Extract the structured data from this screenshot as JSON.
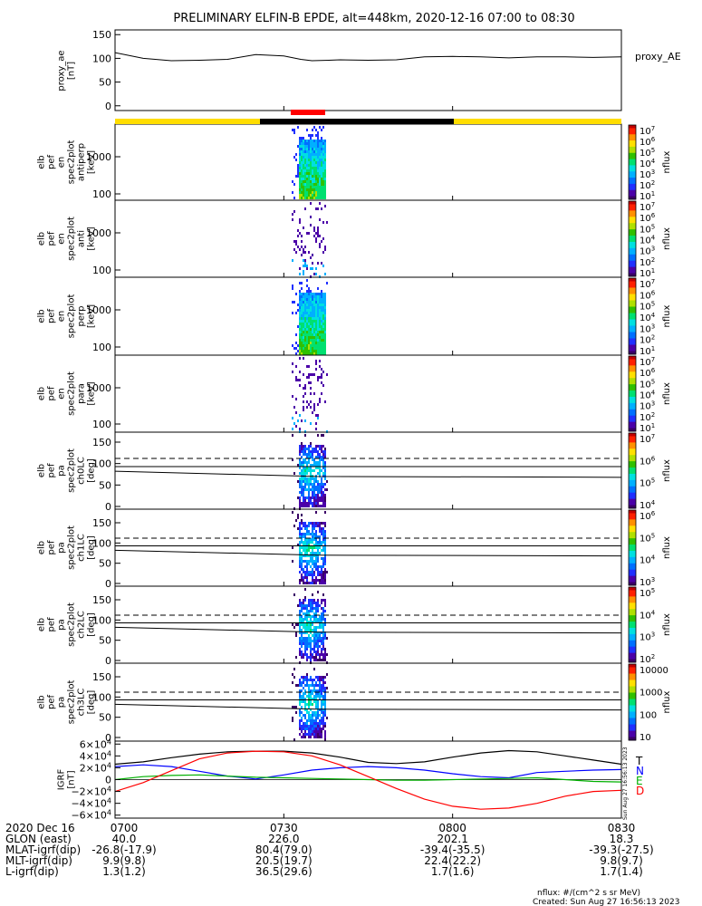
{
  "title": "PRELIMINARY ELFIN-B EPDE, alt=448km, 2020-12-16 07:00 to 08:30",
  "colors": {
    "sunlit_bar": "#ffdd00",
    "eclipse_bar": "#000000",
    "science_zone_bar": "#ff0000",
    "bx": "#000000",
    "by": "#0000ff",
    "bz": "#00b000",
    "bd": "#ff0000"
  },
  "chart_data": [
    {
      "id": "proxy_ae",
      "type": "line",
      "ylabel_lines": [
        "proxy_ae",
        "[nT]"
      ],
      "legend": "proxy_AE",
      "yticks": [
        "150",
        "100",
        "50",
        "0"
      ],
      "ylim": [
        -10,
        160
      ],
      "x_minutes": [
        0,
        5,
        10,
        15,
        20,
        25,
        30,
        33,
        35,
        38,
        40,
        45,
        50,
        55,
        60,
        65,
        70,
        75,
        80,
        85,
        90
      ],
      "values": [
        112,
        100,
        95,
        96,
        98,
        108,
        105,
        98,
        95,
        96,
        97,
        96,
        97,
        103,
        104,
        103,
        101,
        103,
        103,
        102,
        103
      ]
    },
    {
      "id": "en_antiperp",
      "type": "heatmap",
      "ylabel_lines": [
        "elb",
        "pef",
        "en",
        "spec2plot",
        "antiperp",
        "[keV]"
      ],
      "yticks": [
        "1000",
        "100"
      ],
      "colorbar_ticks": [
        "10^7",
        "10^6",
        "10^5",
        "10^4",
        "10^3",
        "10^2",
        "10^1"
      ],
      "zlabel": "nflux"
    },
    {
      "id": "en_anti",
      "type": "heatmap",
      "ylabel_lines": [
        "elb",
        "pef",
        "en",
        "spec2plot",
        "anti",
        "[keV]"
      ],
      "yticks": [
        "1000",
        "100"
      ],
      "colorbar_ticks": [
        "10^7",
        "10^6",
        "10^5",
        "10^4",
        "10^3",
        "10^2",
        "10^1"
      ],
      "zlabel": "nflux"
    },
    {
      "id": "en_perp",
      "type": "heatmap",
      "ylabel_lines": [
        "elb",
        "pef",
        "en",
        "spec2plot",
        "perp",
        "[keV]"
      ],
      "yticks": [
        "1000",
        "100"
      ],
      "colorbar_ticks": [
        "10^7",
        "10^6",
        "10^5",
        "10^4",
        "10^3",
        "10^2",
        "10^1"
      ],
      "zlabel": "nflux"
    },
    {
      "id": "en_para",
      "type": "heatmap",
      "ylabel_lines": [
        "elb",
        "pef",
        "en",
        "spec2plot",
        "para",
        "[keV]"
      ],
      "yticks": [
        "1000",
        "100"
      ],
      "colorbar_ticks": [
        "10^7",
        "10^6",
        "10^5",
        "10^4",
        "10^3",
        "10^2",
        "10^1"
      ],
      "zlabel": "nflux"
    },
    {
      "id": "pa_ch0lc",
      "type": "heatmap",
      "ylabel_lines": [
        "elb",
        "pef",
        "pa",
        "spec2plot",
        "ch0LC",
        "[deg]"
      ],
      "yticks": [
        "150",
        "100",
        "50",
        "0"
      ],
      "colorbar_ticks": [
        "10^7",
        "10^6",
        "10^5",
        "10^4"
      ],
      "zlabel": "nflux"
    },
    {
      "id": "pa_ch1lc",
      "type": "heatmap",
      "ylabel_lines": [
        "elb",
        "pef",
        "pa",
        "spec2plot",
        "ch1LC",
        "[deg]"
      ],
      "yticks": [
        "150",
        "100",
        "50",
        "0"
      ],
      "colorbar_ticks": [
        "10^6",
        "10^5",
        "10^4",
        "10^3"
      ],
      "zlabel": "nflux"
    },
    {
      "id": "pa_ch2lc",
      "type": "heatmap",
      "ylabel_lines": [
        "elb",
        "pef",
        "pa",
        "spec2plot",
        "ch2LC",
        "[deg]"
      ],
      "yticks": [
        "150",
        "100",
        "50",
        "0"
      ],
      "colorbar_ticks": [
        "10^5",
        "10^4",
        "10^3",
        "10^2"
      ],
      "zlabel": "nflux"
    },
    {
      "id": "pa_ch3lc",
      "type": "heatmap",
      "ylabel_lines": [
        "elb",
        "pef",
        "pa",
        "spec2plot",
        "ch3LC",
        "[deg]"
      ],
      "yticks": [
        "150",
        "100",
        "50",
        "0"
      ],
      "colorbar_ticks": [
        "10000",
        "1000",
        "100",
        "10"
      ],
      "zlabel": "nflux"
    },
    {
      "id": "igrf",
      "type": "line",
      "ylabel_lines": [
        "IGRF",
        "[nT]"
      ],
      "yticks": [
        "6×10^4",
        "4×10^4",
        "2×10^4",
        "0",
        "−2×10^4",
        "−4×10^4",
        "−6×10^4"
      ],
      "ylim": [
        -65000,
        65000
      ],
      "legend": [
        "T",
        "N",
        "E",
        "D"
      ],
      "x_minutes": [
        0,
        5,
        10,
        15,
        20,
        25,
        30,
        35,
        40,
        45,
        50,
        55,
        60,
        65,
        70,
        75,
        80,
        85,
        90
      ],
      "series": [
        {
          "name": "T",
          "values": [
            26000,
            30000,
            37000,
            43000,
            47000,
            48000,
            48000,
            45000,
            38000,
            29000,
            27000,
            30000,
            38000,
            45000,
            49000,
            47000,
            40000,
            33000,
            26000
          ]
        },
        {
          "name": "N",
          "values": [
            22000,
            25000,
            22000,
            14000,
            6000,
            1000,
            8000,
            16000,
            20000,
            22000,
            20000,
            16000,
            10000,
            5000,
            3000,
            12000,
            14000,
            16000,
            17000
          ]
        },
        {
          "name": "E",
          "values": [
            0,
            5000,
            7000,
            8000,
            6000,
            4000,
            3000,
            2000,
            1000,
            0,
            -1000,
            -1000,
            0,
            1000,
            2000,
            3000,
            0,
            -3000,
            -4000
          ]
        },
        {
          "name": "D",
          "values": [
            -20000,
            -5000,
            15000,
            35000,
            45000,
            48000,
            47000,
            40000,
            25000,
            5000,
            -15000,
            -33000,
            -45000,
            -50000,
            -48000,
            -40000,
            -28000,
            -20000,
            -18000
          ]
        }
      ]
    }
  ],
  "xaxis": {
    "row_labels": [
      "2020 Dec 16",
      "GLON (east)",
      "MLAT-igrf(dip)",
      "MLT-igrf(dip)",
      "L-igrf(dip)"
    ],
    "columns": [
      {
        "time": "0700",
        "values": [
          "40.0",
          "-26.8(-17.9)",
          "9.9(9.8)",
          "1.3(1.2)"
        ]
      },
      {
        "time": "0730",
        "values": [
          "226.0",
          "80.4(79.0)",
          "20.5(19.7)",
          "36.5(29.6)"
        ]
      },
      {
        "time": "0800",
        "values": [
          "202.1",
          "-39.4(-35.5)",
          "22.4(22.2)",
          "1.7(1.6)"
        ]
      },
      {
        "time": "0830",
        "values": [
          "18.3",
          "-39.3(-27.5)",
          "9.8(9.7)",
          "1.7(1.4)"
        ]
      }
    ]
  },
  "footer": {
    "nflux_units": "nflux: #/(cm^2 s sr MeV)",
    "created": "Created: Sun Aug 27 16:56:13 2023"
  },
  "side_stamp": "Sun Aug 27 16:56:13 2023"
}
